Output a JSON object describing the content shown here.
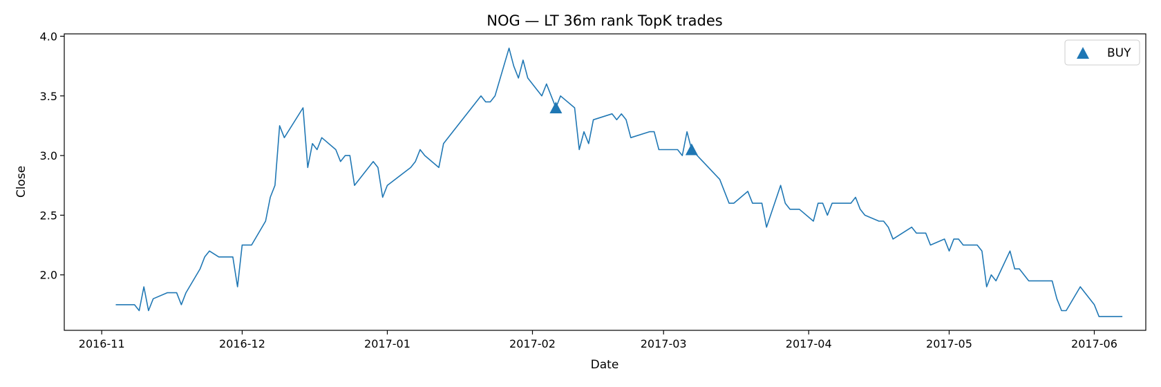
{
  "chart_data": {
    "type": "line",
    "title": "NOG — LT 36m rank TopK trades",
    "xlabel": "Date",
    "ylabel": "Close",
    "x_range": [
      "2016-10-24",
      "2017-06-12"
    ],
    "ylim": [
      1.535,
      4.02
    ],
    "x_ticks": [
      "2016-11-01",
      "2016-12-01",
      "2017-01-01",
      "2017-02-01",
      "2017-03-01",
      "2017-04-01",
      "2017-05-01",
      "2017-06-01"
    ],
    "x_tick_labels": [
      "2016-11",
      "2016-12",
      "2017-01",
      "2017-02",
      "2017-03",
      "2017-04",
      "2017-05",
      "2017-06"
    ],
    "y_ticks": [
      2.0,
      2.5,
      3.0,
      3.5,
      4.0
    ],
    "y_tick_labels": [
      "2.0",
      "2.5",
      "3.0",
      "3.5",
      "4.0"
    ],
    "grid": false,
    "legend_position": "top-right",
    "series": [
      {
        "color": "#1f77b4",
        "points": [
          [
            "2016-11-04",
            1.75
          ],
          [
            "2016-11-07",
            1.75
          ],
          [
            "2016-11-08",
            1.75
          ],
          [
            "2016-11-09",
            1.7
          ],
          [
            "2016-11-10",
            1.9
          ],
          [
            "2016-11-11",
            1.7
          ],
          [
            "2016-11-12",
            1.8
          ],
          [
            "2016-11-15",
            1.85
          ],
          [
            "2016-11-17",
            1.85
          ],
          [
            "2016-11-18",
            1.75
          ],
          [
            "2016-11-19",
            1.85
          ],
          [
            "2016-11-22",
            2.05
          ],
          [
            "2016-11-23",
            2.15
          ],
          [
            "2016-11-24",
            2.2
          ],
          [
            "2016-11-26",
            2.15
          ],
          [
            "2016-11-29",
            2.15
          ],
          [
            "2016-11-30",
            1.9
          ],
          [
            "2016-12-01",
            2.25
          ],
          [
            "2016-12-03",
            2.25
          ],
          [
            "2016-12-06",
            2.45
          ],
          [
            "2016-12-07",
            2.65
          ],
          [
            "2016-12-08",
            2.75
          ],
          [
            "2016-12-09",
            3.25
          ],
          [
            "2016-12-10",
            3.15
          ],
          [
            "2016-12-14",
            3.4
          ],
          [
            "2016-12-15",
            2.9
          ],
          [
            "2016-12-16",
            3.1
          ],
          [
            "2016-12-17",
            3.05
          ],
          [
            "2016-12-18",
            3.15
          ],
          [
            "2016-12-21",
            3.05
          ],
          [
            "2016-12-22",
            2.95
          ],
          [
            "2016-12-23",
            3.0
          ],
          [
            "2016-12-24",
            3.0
          ],
          [
            "2016-12-25",
            2.75
          ],
          [
            "2016-12-29",
            2.95
          ],
          [
            "2016-12-30",
            2.9
          ],
          [
            "2016-12-31",
            2.65
          ],
          [
            "2017-01-01",
            2.75
          ],
          [
            "2017-01-06",
            2.9
          ],
          [
            "2017-01-07",
            2.95
          ],
          [
            "2017-01-08",
            3.05
          ],
          [
            "2017-01-09",
            3.0
          ],
          [
            "2017-01-12",
            2.9
          ],
          [
            "2017-01-13",
            3.1
          ],
          [
            "2017-01-16",
            3.25
          ],
          [
            "2017-01-21",
            3.5
          ],
          [
            "2017-01-22",
            3.45
          ],
          [
            "2017-01-23",
            3.45
          ],
          [
            "2017-01-24",
            3.5
          ],
          [
            "2017-01-27",
            3.9
          ],
          [
            "2017-01-28",
            3.75
          ],
          [
            "2017-01-29",
            3.65
          ],
          [
            "2017-01-30",
            3.8
          ],
          [
            "2017-01-31",
            3.65
          ],
          [
            "2017-02-03",
            3.5
          ],
          [
            "2017-02-04",
            3.6
          ],
          [
            "2017-02-06",
            3.4
          ],
          [
            "2017-02-07",
            3.5
          ],
          [
            "2017-02-10",
            3.4
          ],
          [
            "2017-02-11",
            3.05
          ],
          [
            "2017-02-12",
            3.2
          ],
          [
            "2017-02-13",
            3.1
          ],
          [
            "2017-02-14",
            3.3
          ],
          [
            "2017-02-18",
            3.35
          ],
          [
            "2017-02-19",
            3.3
          ],
          [
            "2017-02-20",
            3.35
          ],
          [
            "2017-02-21",
            3.3
          ],
          [
            "2017-02-22",
            3.15
          ],
          [
            "2017-02-26",
            3.2
          ],
          [
            "2017-02-27",
            3.2
          ],
          [
            "2017-02-28",
            3.05
          ],
          [
            "2017-03-03",
            3.05
          ],
          [
            "2017-03-04",
            3.05
          ],
          [
            "2017-03-05",
            3.0
          ],
          [
            "2017-03-06",
            3.2
          ],
          [
            "2017-03-07",
            3.05
          ],
          [
            "2017-03-13",
            2.8
          ],
          [
            "2017-03-15",
            2.6
          ],
          [
            "2017-03-16",
            2.6
          ],
          [
            "2017-03-19",
            2.7
          ],
          [
            "2017-03-20",
            2.6
          ],
          [
            "2017-03-22",
            2.6
          ],
          [
            "2017-03-23",
            2.4
          ],
          [
            "2017-03-26",
            2.75
          ],
          [
            "2017-03-27",
            2.6
          ],
          [
            "2017-03-28",
            2.55
          ],
          [
            "2017-03-30",
            2.55
          ],
          [
            "2017-04-02",
            2.45
          ],
          [
            "2017-04-03",
            2.6
          ],
          [
            "2017-04-04",
            2.6
          ],
          [
            "2017-04-05",
            2.5
          ],
          [
            "2017-04-06",
            2.6
          ],
          [
            "2017-04-10",
            2.6
          ],
          [
            "2017-04-11",
            2.65
          ],
          [
            "2017-04-12",
            2.55
          ],
          [
            "2017-04-13",
            2.5
          ],
          [
            "2017-04-16",
            2.45
          ],
          [
            "2017-04-17",
            2.45
          ],
          [
            "2017-04-18",
            2.4
          ],
          [
            "2017-04-19",
            2.3
          ],
          [
            "2017-04-23",
            2.4
          ],
          [
            "2017-04-24",
            2.35
          ],
          [
            "2017-04-26",
            2.35
          ],
          [
            "2017-04-27",
            2.25
          ],
          [
            "2017-04-30",
            2.3
          ],
          [
            "2017-05-01",
            2.2
          ],
          [
            "2017-05-02",
            2.3
          ],
          [
            "2017-05-03",
            2.3
          ],
          [
            "2017-05-04",
            2.25
          ],
          [
            "2017-05-07",
            2.25
          ],
          [
            "2017-05-08",
            2.2
          ],
          [
            "2017-05-09",
            1.9
          ],
          [
            "2017-05-10",
            2.0
          ],
          [
            "2017-05-11",
            1.95
          ],
          [
            "2017-05-14",
            2.2
          ],
          [
            "2017-05-15",
            2.05
          ],
          [
            "2017-05-16",
            2.05
          ],
          [
            "2017-05-18",
            1.95
          ],
          [
            "2017-05-23",
            1.95
          ],
          [
            "2017-05-24",
            1.8
          ],
          [
            "2017-05-25",
            1.7
          ],
          [
            "2017-05-26",
            1.7
          ],
          [
            "2017-05-29",
            1.9
          ],
          [
            "2017-06-01",
            1.75
          ],
          [
            "2017-06-02",
            1.65
          ],
          [
            "2017-06-07",
            1.65
          ]
        ]
      }
    ],
    "markers": {
      "name": "BUY",
      "shape": "triangle-up",
      "color": "#1f77b4",
      "points": [
        [
          "2017-02-06",
          3.4
        ],
        [
          "2017-03-07",
          3.05
        ]
      ]
    }
  }
}
